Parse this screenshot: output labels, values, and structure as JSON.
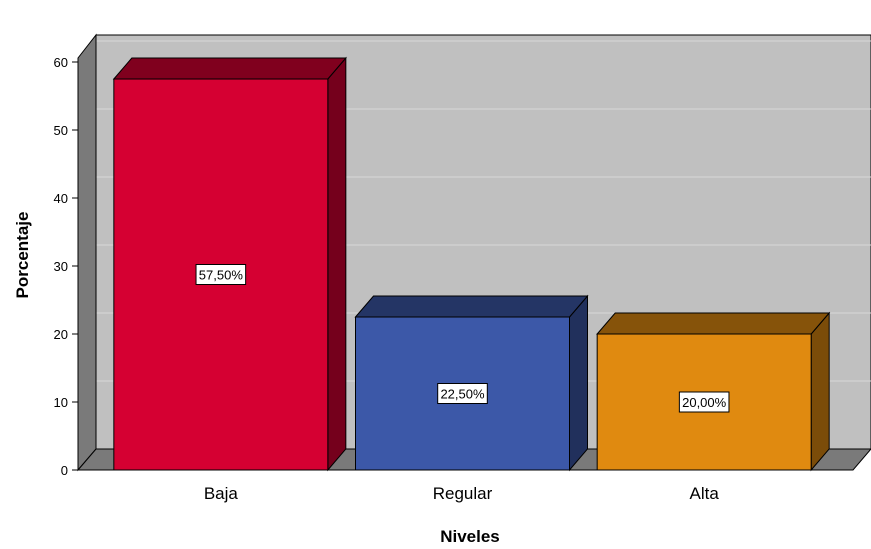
{
  "chart_data": {
    "type": "bar",
    "xlabel": "Niveles",
    "ylabel": "Porcentaje",
    "categories": [
      "Baja",
      "Regular",
      "Alta"
    ],
    "values": [
      57.5,
      22.5,
      20.0
    ],
    "data_labels": [
      "57,50%",
      "22,50%",
      "20,00%"
    ],
    "ylim": [
      0,
      60
    ],
    "yticks": [
      0,
      10,
      20,
      30,
      40,
      50,
      60
    ],
    "grid": true,
    "style": "3d",
    "colors": [
      "#d50032",
      "#3c58a8",
      "#e08a10"
    ]
  }
}
